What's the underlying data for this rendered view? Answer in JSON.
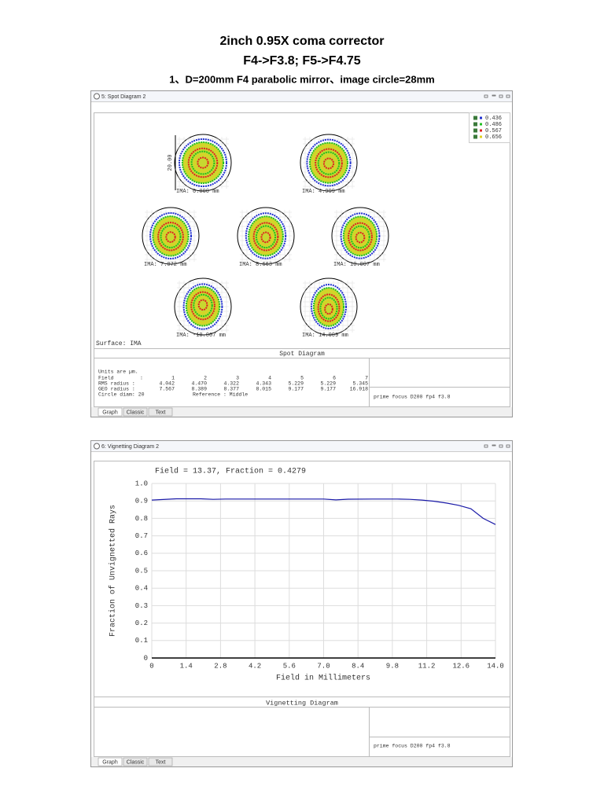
{
  "header": {
    "title": "2inch 0.95X coma corrector",
    "subtitle": "F4->F3.8; F5->F4.75",
    "caption": "1、D=200mm F4 parabolic mirror、image circle=28mm"
  },
  "spot_window": {
    "title": "5: Spot Diagram 2",
    "legend": [
      "0.436",
      "0.486",
      "0.567",
      "0.656"
    ],
    "legend_colors": [
      "#2030d0",
      "#20c020",
      "#e02020",
      "#e0d020"
    ],
    "scale_label": "20.00",
    "fields": [
      "IMA: 0.000 mm",
      "IMA: 4.999 mm",
      "IMA: 7.072 mm",
      "IMA: 8.663 mm",
      "IMA: 10.007 mm",
      "IMA: -10.007 mm",
      "IMA: 14.009 mm"
    ],
    "surface": "Surface: IMA",
    "panel_title": "Spot Diagram",
    "units": "Units are µm.",
    "table": {
      "field_label": "Field",
      "field_sep": ":",
      "field_numbers": [
        1,
        2,
        3,
        4,
        5,
        6,
        7
      ],
      "rows": [
        {
          "label": "RMS radius :",
          "values": [
            4.042,
            4.47,
            4.322,
            4.343,
            5.229,
            5.229,
            5.345
          ],
          "value_labels": [
            "4.042",
            "4.470",
            "4.322",
            "4.343",
            "5.229",
            "5.229",
            "5.345"
          ]
        },
        {
          "label": "GEO radius :",
          "values": [
            7.567,
            8.389,
            8.377,
            8.015,
            9.177,
            9.177,
            16.918
          ],
          "value_labels": [
            "7.567",
            "8.389",
            "8.377",
            "8.015",
            "9.177",
            "9.177",
            "16.918"
          ]
        }
      ],
      "circle_diam": "Circle diam: 20",
      "reference": "Reference  : Middle"
    },
    "description": "prime focus D200 fp4 f3.8",
    "tabs": [
      "Graph",
      "Classic",
      "Text"
    ]
  },
  "vignetting_window": {
    "title": "6: Vignetting Diagram 2",
    "chart": {
      "type": "line",
      "annotation": "Field = 13.37, Fraction = 0.4279",
      "xlabel": "Field in Millimeters",
      "ylabel": "Fraction of Unvignetted Rays",
      "x": [
        0,
        1,
        2,
        2.5,
        3,
        4,
        5,
        6,
        7,
        7.5,
        8,
        9,
        10,
        10.5,
        11,
        11.5,
        12,
        12.5,
        13,
        13.5,
        14
      ],
      "series": [
        {
          "color": "#1a1aa8",
          "values": [
            0.905,
            0.912,
            0.912,
            0.909,
            0.911,
            0.911,
            0.911,
            0.911,
            0.911,
            0.906,
            0.91,
            0.911,
            0.911,
            0.909,
            0.905,
            0.898,
            0.888,
            0.875,
            0.855,
            0.8,
            0.765
          ]
        }
      ],
      "xlim": [
        0,
        14
      ],
      "ylim": [
        0,
        1
      ],
      "xticks": [
        0,
        1.4,
        2.8,
        4.2,
        5.6,
        {
          "value": 7,
          "label": "7.0"
        },
        8.4,
        9.8,
        11.2,
        12.6,
        {
          "value": 14,
          "label": "14.0"
        }
      ],
      "yticks": [
        0,
        0.1,
        0.2,
        0.3,
        0.4,
        0.5,
        0.6,
        0.7,
        0.8,
        0.9,
        {
          "value": 1,
          "label": "1.0"
        }
      ],
      "grid": true
    },
    "panel_title": "Vignetting Diagram",
    "description": "prime focus D200 fp4 f3.8",
    "tabs": [
      "Graph",
      "Classic",
      "Text"
    ]
  }
}
